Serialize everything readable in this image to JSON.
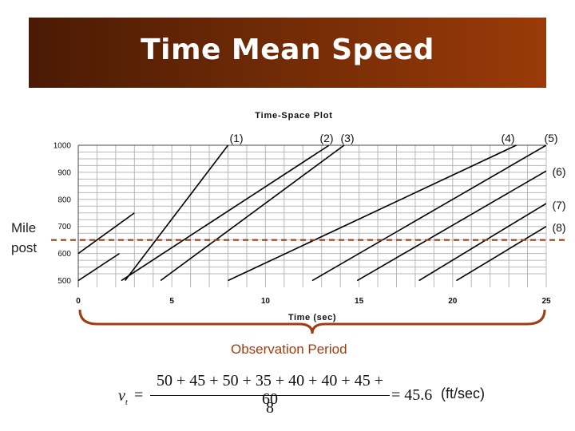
{
  "slide": {
    "title": "Time Mean Speed",
    "y_side_label": [
      "Mile",
      "post"
    ],
    "bracket_label": "Observation Period",
    "formula": {
      "lhs_symbol": "v",
      "lhs_subscript": "t",
      "equals": "=",
      "numerator": "50 + 45 + 50 + 35 + 40 + 40 + 45 + 60",
      "denominator": "8",
      "result": "= 45.6",
      "unit": "(ft/sec)"
    }
  },
  "chart_data": {
    "type": "line",
    "title": "Time-Space Plot",
    "xlabel": "Time (sec)",
    "ylabel": "",
    "xlim": [
      0,
      25
    ],
    "ylim": [
      500,
      1000
    ],
    "x_ticks": [
      0,
      5,
      10,
      15,
      20,
      25
    ],
    "y_ticks": [
      500,
      600,
      700,
      800,
      900,
      1000
    ],
    "grid": true,
    "observation_milepost": 650,
    "observation_period": [
      0,
      25
    ],
    "vehicle_labels": [
      "(1)",
      "(2)",
      "(3)",
      "(4)",
      "(5)",
      "(6)",
      "(7)",
      "(8)"
    ],
    "series": [
      {
        "name": "(1)",
        "speed": 50,
        "x": [
          2.5,
          8.0
        ],
        "y": [
          500,
          1000
        ]
      },
      {
        "name": "(2)",
        "speed": 45,
        "x": [
          2.3,
          13.4
        ],
        "y": [
          500,
          1000
        ]
      },
      {
        "name": "(1)",
        "speed": 50,
        "x": [
          -0.0,
          3.0
        ],
        "y": [
          600,
          750
        ]
      },
      {
        "name": "(3)",
        "speed": 50,
        "x": [
          4.4,
          14.2
        ],
        "y": [
          500,
          1000
        ]
      },
      {
        "name": "(2)",
        "speed": 45,
        "x": [
          -0.0,
          2.2
        ],
        "y": [
          500,
          600
        ]
      },
      {
        "name": "(4)",
        "speed": 35,
        "x": [
          8.0,
          23.4
        ],
        "y": [
          500,
          1000
        ]
      },
      {
        "name": "(5)",
        "speed": 40,
        "x": [
          12.5,
          25.0
        ],
        "y": [
          500,
          1000
        ]
      },
      {
        "name": "(6)",
        "speed": 40,
        "x": [
          14.9,
          25.0
        ],
        "y": [
          500,
          905
        ]
      },
      {
        "name": "(7)",
        "speed": 45,
        "x": [
          18.2,
          25.0
        ],
        "y": [
          500,
          785
        ]
      },
      {
        "name": "(8)",
        "speed": 60,
        "x": [
          20.2,
          25.0
        ],
        "y": [
          500,
          700
        ]
      }
    ],
    "colors": {
      "lines": "#000000",
      "grid": "#b8b8b8",
      "observation_line": "#a03c10"
    }
  }
}
